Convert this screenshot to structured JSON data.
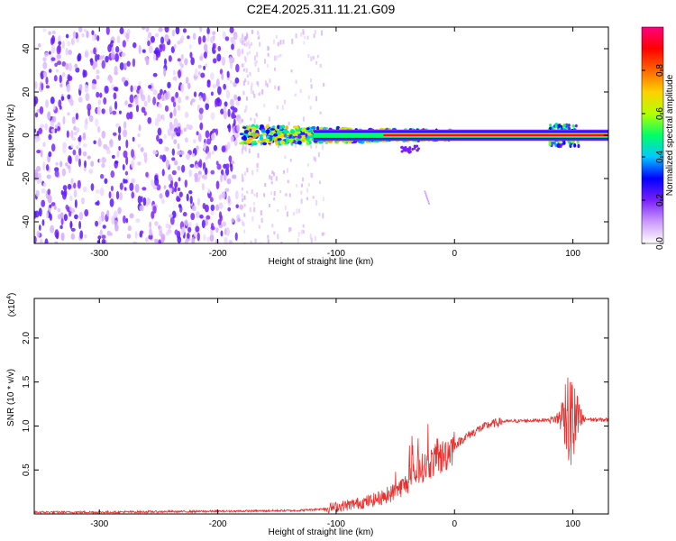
{
  "title": "C2E4.2025.311.11.21.G09",
  "chart_data": [
    {
      "type": "heatmap",
      "xlabel": "Height of straight line (km)",
      "ylabel": "Frequency (Hz)",
      "xlim": [
        -355,
        130
      ],
      "ylim": [
        -50,
        50
      ],
      "x_ticks": [
        -300,
        -200,
        -100,
        0,
        100
      ],
      "y_ticks": [
        -40,
        -20,
        0,
        20,
        40
      ],
      "colorbar": {
        "label": "Normalized spectral amplitude",
        "range": [
          0.0,
          1.0
        ],
        "ticks": [
          "0.0",
          "0.2",
          "0.4",
          "0.6",
          "0.8"
        ],
        "colors": [
          "#ffffff",
          "#cc99ff",
          "#7a1fff",
          "#0000ff",
          "#00c8ff",
          "#00ff66",
          "#b4ff00",
          "#ffd000",
          "#ff6600",
          "#ff0000",
          "#ff0080"
        ]
      },
      "regions": [
        {
          "name": "noise_dense",
          "x_range": [
            -355,
            -180
          ],
          "y_range": [
            -50,
            50
          ],
          "amplitude": 0.15
        },
        {
          "name": "noise_sparse",
          "x_range": [
            -180,
            -110
          ],
          "y_range": [
            -50,
            50
          ],
          "amplitude": 0.05
        },
        {
          "name": "signal_band",
          "x_range": [
            -180,
            0
          ],
          "y_center": 0,
          "half_width_hz": 4,
          "amplitude": 0.5
        },
        {
          "name": "carrier_line",
          "x_range": [
            -60,
            130
          ],
          "y_center": 0,
          "half_width_hz": 1.2,
          "amplitude": 0.95
        },
        {
          "name": "burst",
          "x_range": [
            80,
            105
          ],
          "y_center": 0,
          "half_width_hz": 5,
          "amplitude": 0.45
        }
      ]
    },
    {
      "type": "line",
      "xlabel": "Height of straight line (km)",
      "ylabel": "SNR (10 * v/v)",
      "scale_note": "(x10",
      "scale_exp": "4",
      "xlim": [
        -355,
        130
      ],
      "ylim": [
        0,
        2.45
      ],
      "x_ticks": [
        -300,
        -200,
        -100,
        0,
        100
      ],
      "y_ticks": [
        "0.5",
        "1.0",
        "1.5",
        "2.0"
      ],
      "line_color": "#e8312f",
      "series": [
        {
          "x": [
            -355,
            -300,
            -250,
            -200,
            -160,
            -130,
            -110,
            -90,
            -70,
            -55,
            -40,
            -30,
            -20,
            -10,
            0,
            10,
            20,
            30,
            40,
            60,
            80,
            85,
            90,
            95,
            100,
            105,
            110,
            120,
            130
          ],
          "values": [
            0.02,
            0.02,
            0.025,
            0.03,
            0.035,
            0.04,
            0.06,
            0.1,
            0.15,
            0.22,
            0.35,
            0.5,
            0.58,
            0.65,
            0.78,
            0.88,
            0.96,
            1.02,
            1.05,
            1.06,
            1.07,
            1.08,
            1.1,
            1.2,
            1.0,
            1.06,
            1.08,
            1.07,
            1.07
          ]
        }
      ]
    }
  ]
}
